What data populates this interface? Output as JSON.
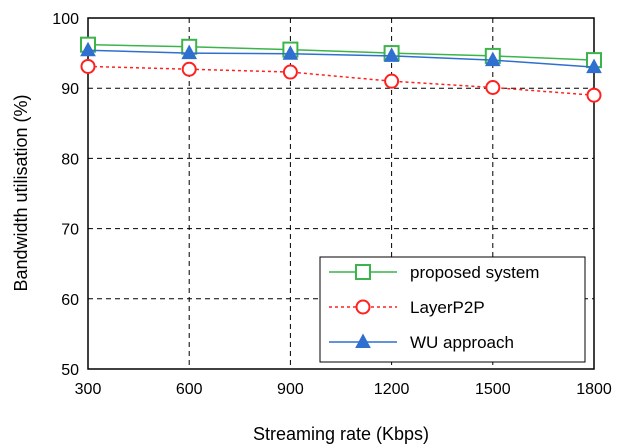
{
  "chart_data": {
    "type": "line",
    "title": "",
    "xlabel": "Streaming rate (Kbps)",
    "ylabel": "Bandwidth utilisation (%)",
    "x": [
      300,
      600,
      900,
      1200,
      1500,
      1800
    ],
    "xlim": [
      300,
      1800
    ],
    "ylim": [
      50,
      100
    ],
    "yticks": [
      50,
      60,
      70,
      80,
      90,
      100
    ],
    "grid": true,
    "legend_position": "bottom-right",
    "series": [
      {
        "name": "proposed system",
        "values": [
          96.2,
          95.9,
          95.5,
          95.0,
          94.6,
          94.0
        ],
        "color": "#3cb44b",
        "line": "solid",
        "marker": "open-square"
      },
      {
        "name": "LayerP2P",
        "values": [
          93.1,
          92.7,
          92.3,
          91.0,
          90.1,
          89.0
        ],
        "color": "#ff2020",
        "line": "dotted",
        "marker": "open-circle"
      },
      {
        "name": "WU approach",
        "values": [
          95.4,
          95.0,
          94.9,
          94.6,
          94.0,
          93.0
        ],
        "color": "#2f6fd0",
        "line": "solid",
        "marker": "filled-triangle"
      }
    ]
  }
}
